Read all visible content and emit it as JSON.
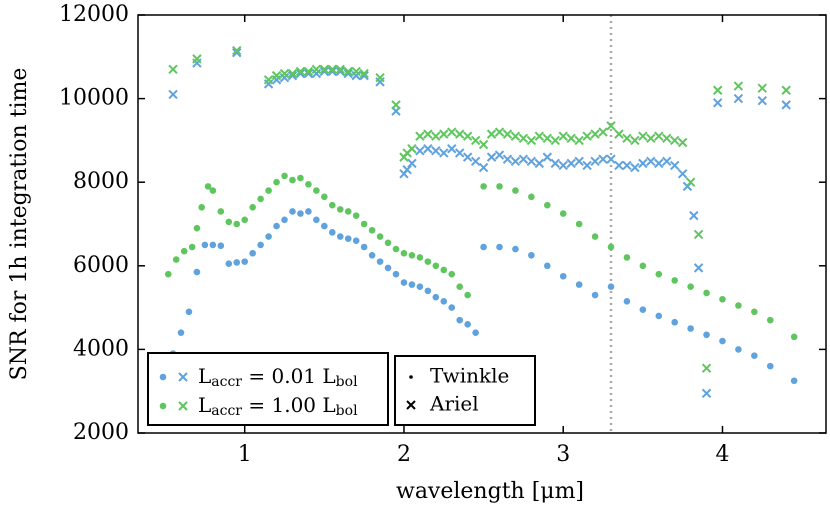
{
  "chart_data": {
    "type": "scatter",
    "x_label": "wavelength [μm]",
    "y_label": "SNR for 1h integration time",
    "xlim": [
      0.33,
      4.65
    ],
    "ylim": [
      2000,
      12000
    ],
    "xticks": [
      1,
      2,
      3,
      4
    ],
    "yticks": [
      2000,
      4000,
      6000,
      8000,
      10000,
      12000
    ],
    "vline": 3.3,
    "color_legend": [
      {
        "parts": [
          {
            "text": "L"
          },
          {
            "text": "accr",
            "sub": true
          },
          {
            "text": " = 0.01 L"
          },
          {
            "text": "bol",
            "sub": true
          }
        ],
        "color": "#5fa2dd"
      },
      {
        "parts": [
          {
            "text": "L"
          },
          {
            "text": "accr",
            "sub": true
          },
          {
            "text": " = 1.00 L"
          },
          {
            "text": "bol",
            "sub": true
          }
        ],
        "color": "#5fc65f"
      }
    ],
    "marker_legend": [
      {
        "name": "Twinkle",
        "marker": "dot"
      },
      {
        "name": "Ariel",
        "marker": "x"
      }
    ],
    "series": [
      {
        "color": "#5fa2dd",
        "marker": "dot",
        "x": [
          0.55,
          0.6,
          0.65,
          0.7,
          0.75,
          0.8,
          0.85,
          0.9,
          0.95,
          1.0,
          1.05,
          1.1,
          1.15,
          1.2,
          1.25,
          1.3,
          1.35,
          1.4,
          1.45,
          1.5,
          1.55,
          1.6,
          1.65,
          1.7,
          1.75,
          1.8,
          1.85,
          1.9,
          1.95,
          2.0,
          2.05,
          2.1,
          2.15,
          2.2,
          2.25,
          2.3,
          2.35,
          2.4,
          2.45,
          2.5,
          2.6,
          2.7,
          2.8,
          2.9,
          3.0,
          3.1,
          3.2,
          3.3,
          3.4,
          3.5,
          3.6,
          3.7,
          3.8,
          3.9,
          4.0,
          4.1,
          4.2,
          4.3,
          4.45
        ],
        "values": [
          3900,
          4400,
          4900,
          5850,
          6500,
          6500,
          6480,
          6050,
          6080,
          6100,
          6300,
          6500,
          6700,
          6950,
          7100,
          7300,
          7250,
          7300,
          7100,
          6950,
          6800,
          6700,
          6650,
          6600,
          6450,
          6250,
          6100,
          5950,
          5800,
          5600,
          5550,
          5500,
          5400,
          5250,
          5150,
          5000,
          4700,
          4600,
          4400,
          6450,
          6450,
          6400,
          6250,
          6000,
          5750,
          5550,
          5300,
          5500,
          5150,
          4950,
          4800,
          4650,
          4500,
          4350,
          4200,
          4000,
          3850,
          3600,
          3250
        ]
      },
      {
        "color": "#5fc65f",
        "marker": "dot",
        "x": [
          0.52,
          0.57,
          0.62,
          0.67,
          0.7,
          0.73,
          0.77,
          0.8,
          0.85,
          0.9,
          0.95,
          1.0,
          1.05,
          1.1,
          1.15,
          1.2,
          1.25,
          1.3,
          1.35,
          1.4,
          1.45,
          1.5,
          1.55,
          1.6,
          1.65,
          1.7,
          1.75,
          1.8,
          1.85,
          1.9,
          1.95,
          2.0,
          2.05,
          2.1,
          2.15,
          2.2,
          2.25,
          2.3,
          2.35,
          2.4,
          2.5,
          2.6,
          2.7,
          2.8,
          2.9,
          3.0,
          3.1,
          3.2,
          3.3,
          3.4,
          3.5,
          3.6,
          3.7,
          3.8,
          3.9,
          4.0,
          4.1,
          4.2,
          4.3,
          4.45
        ],
        "values": [
          5800,
          6150,
          6350,
          6450,
          6900,
          7400,
          7900,
          7800,
          7300,
          7050,
          7000,
          7100,
          7400,
          7600,
          7800,
          8000,
          8150,
          8050,
          8100,
          7950,
          7800,
          7650,
          7450,
          7350,
          7300,
          7200,
          7000,
          6850,
          6700,
          6550,
          6400,
          6300,
          6250,
          6200,
          6100,
          6000,
          5900,
          5800,
          5500,
          5300,
          7900,
          7900,
          7800,
          7650,
          7450,
          7250,
          7000,
          6700,
          6450,
          6200,
          6000,
          5800,
          5650,
          5500,
          5350,
          5200,
          5050,
          4900,
          4700,
          4300
        ]
      },
      {
        "color": "#5fa2dd",
        "marker": "x",
        "x": [
          0.55,
          0.7,
          0.95,
          1.15,
          1.2,
          1.25,
          1.3,
          1.35,
          1.4,
          1.45,
          1.5,
          1.55,
          1.6,
          1.65,
          1.7,
          1.75,
          1.85,
          1.95,
          2.0,
          2.02,
          2.05,
          2.1,
          2.15,
          2.2,
          2.25,
          2.3,
          2.35,
          2.4,
          2.45,
          2.5,
          2.55,
          2.6,
          2.65,
          2.7,
          2.75,
          2.8,
          2.85,
          2.9,
          2.95,
          3.0,
          3.05,
          3.1,
          3.15,
          3.2,
          3.25,
          3.3,
          3.35,
          3.4,
          3.45,
          3.5,
          3.55,
          3.6,
          3.65,
          3.7,
          3.75,
          3.78,
          3.82,
          3.85,
          3.9,
          3.97,
          4.1,
          4.25,
          4.4
        ],
        "values": [
          10100,
          10850,
          11100,
          10350,
          10450,
          10500,
          10550,
          10600,
          10600,
          10600,
          10650,
          10650,
          10650,
          10600,
          10550,
          10550,
          10400,
          9700,
          8200,
          8300,
          8450,
          8750,
          8800,
          8750,
          8700,
          8800,
          8700,
          8600,
          8500,
          8350,
          8600,
          8650,
          8550,
          8500,
          8550,
          8500,
          8450,
          8600,
          8450,
          8400,
          8450,
          8500,
          8400,
          8500,
          8550,
          8550,
          8400,
          8400,
          8350,
          8450,
          8500,
          8450,
          8500,
          8400,
          8200,
          7900,
          7200,
          5950,
          2950,
          9900,
          10000,
          9950,
          9850
        ]
      },
      {
        "color": "#5fc65f",
        "marker": "x",
        "x": [
          0.55,
          0.7,
          0.95,
          1.15,
          1.2,
          1.25,
          1.3,
          1.35,
          1.4,
          1.45,
          1.5,
          1.55,
          1.6,
          1.65,
          1.7,
          1.75,
          1.85,
          1.95,
          2.0,
          2.02,
          2.05,
          2.1,
          2.15,
          2.2,
          2.25,
          2.3,
          2.35,
          2.4,
          2.45,
          2.5,
          2.55,
          2.6,
          2.65,
          2.7,
          2.75,
          2.8,
          2.85,
          2.9,
          2.95,
          3.0,
          3.05,
          3.1,
          3.15,
          3.2,
          3.25,
          3.3,
          3.35,
          3.4,
          3.45,
          3.5,
          3.55,
          3.6,
          3.65,
          3.7,
          3.75,
          3.8,
          3.85,
          3.9,
          3.97,
          4.1,
          4.25,
          4.4
        ],
        "values": [
          10700,
          10950,
          11150,
          10450,
          10550,
          10600,
          10600,
          10650,
          10650,
          10700,
          10700,
          10700,
          10700,
          10650,
          10650,
          10600,
          10500,
          9850,
          8600,
          8700,
          8800,
          9100,
          9150,
          9100,
          9150,
          9200,
          9150,
          9100,
          9000,
          8900,
          9150,
          9200,
          9150,
          9100,
          9050,
          9000,
          9100,
          9050,
          9000,
          9100,
          9050,
          9000,
          9100,
          9150,
          9200,
          9350,
          9150,
          9050,
          9000,
          9100,
          9050,
          9100,
          9050,
          9000,
          8950,
          8000,
          6750,
          3550,
          10200,
          10300,
          10250,
          10200
        ]
      }
    ]
  }
}
